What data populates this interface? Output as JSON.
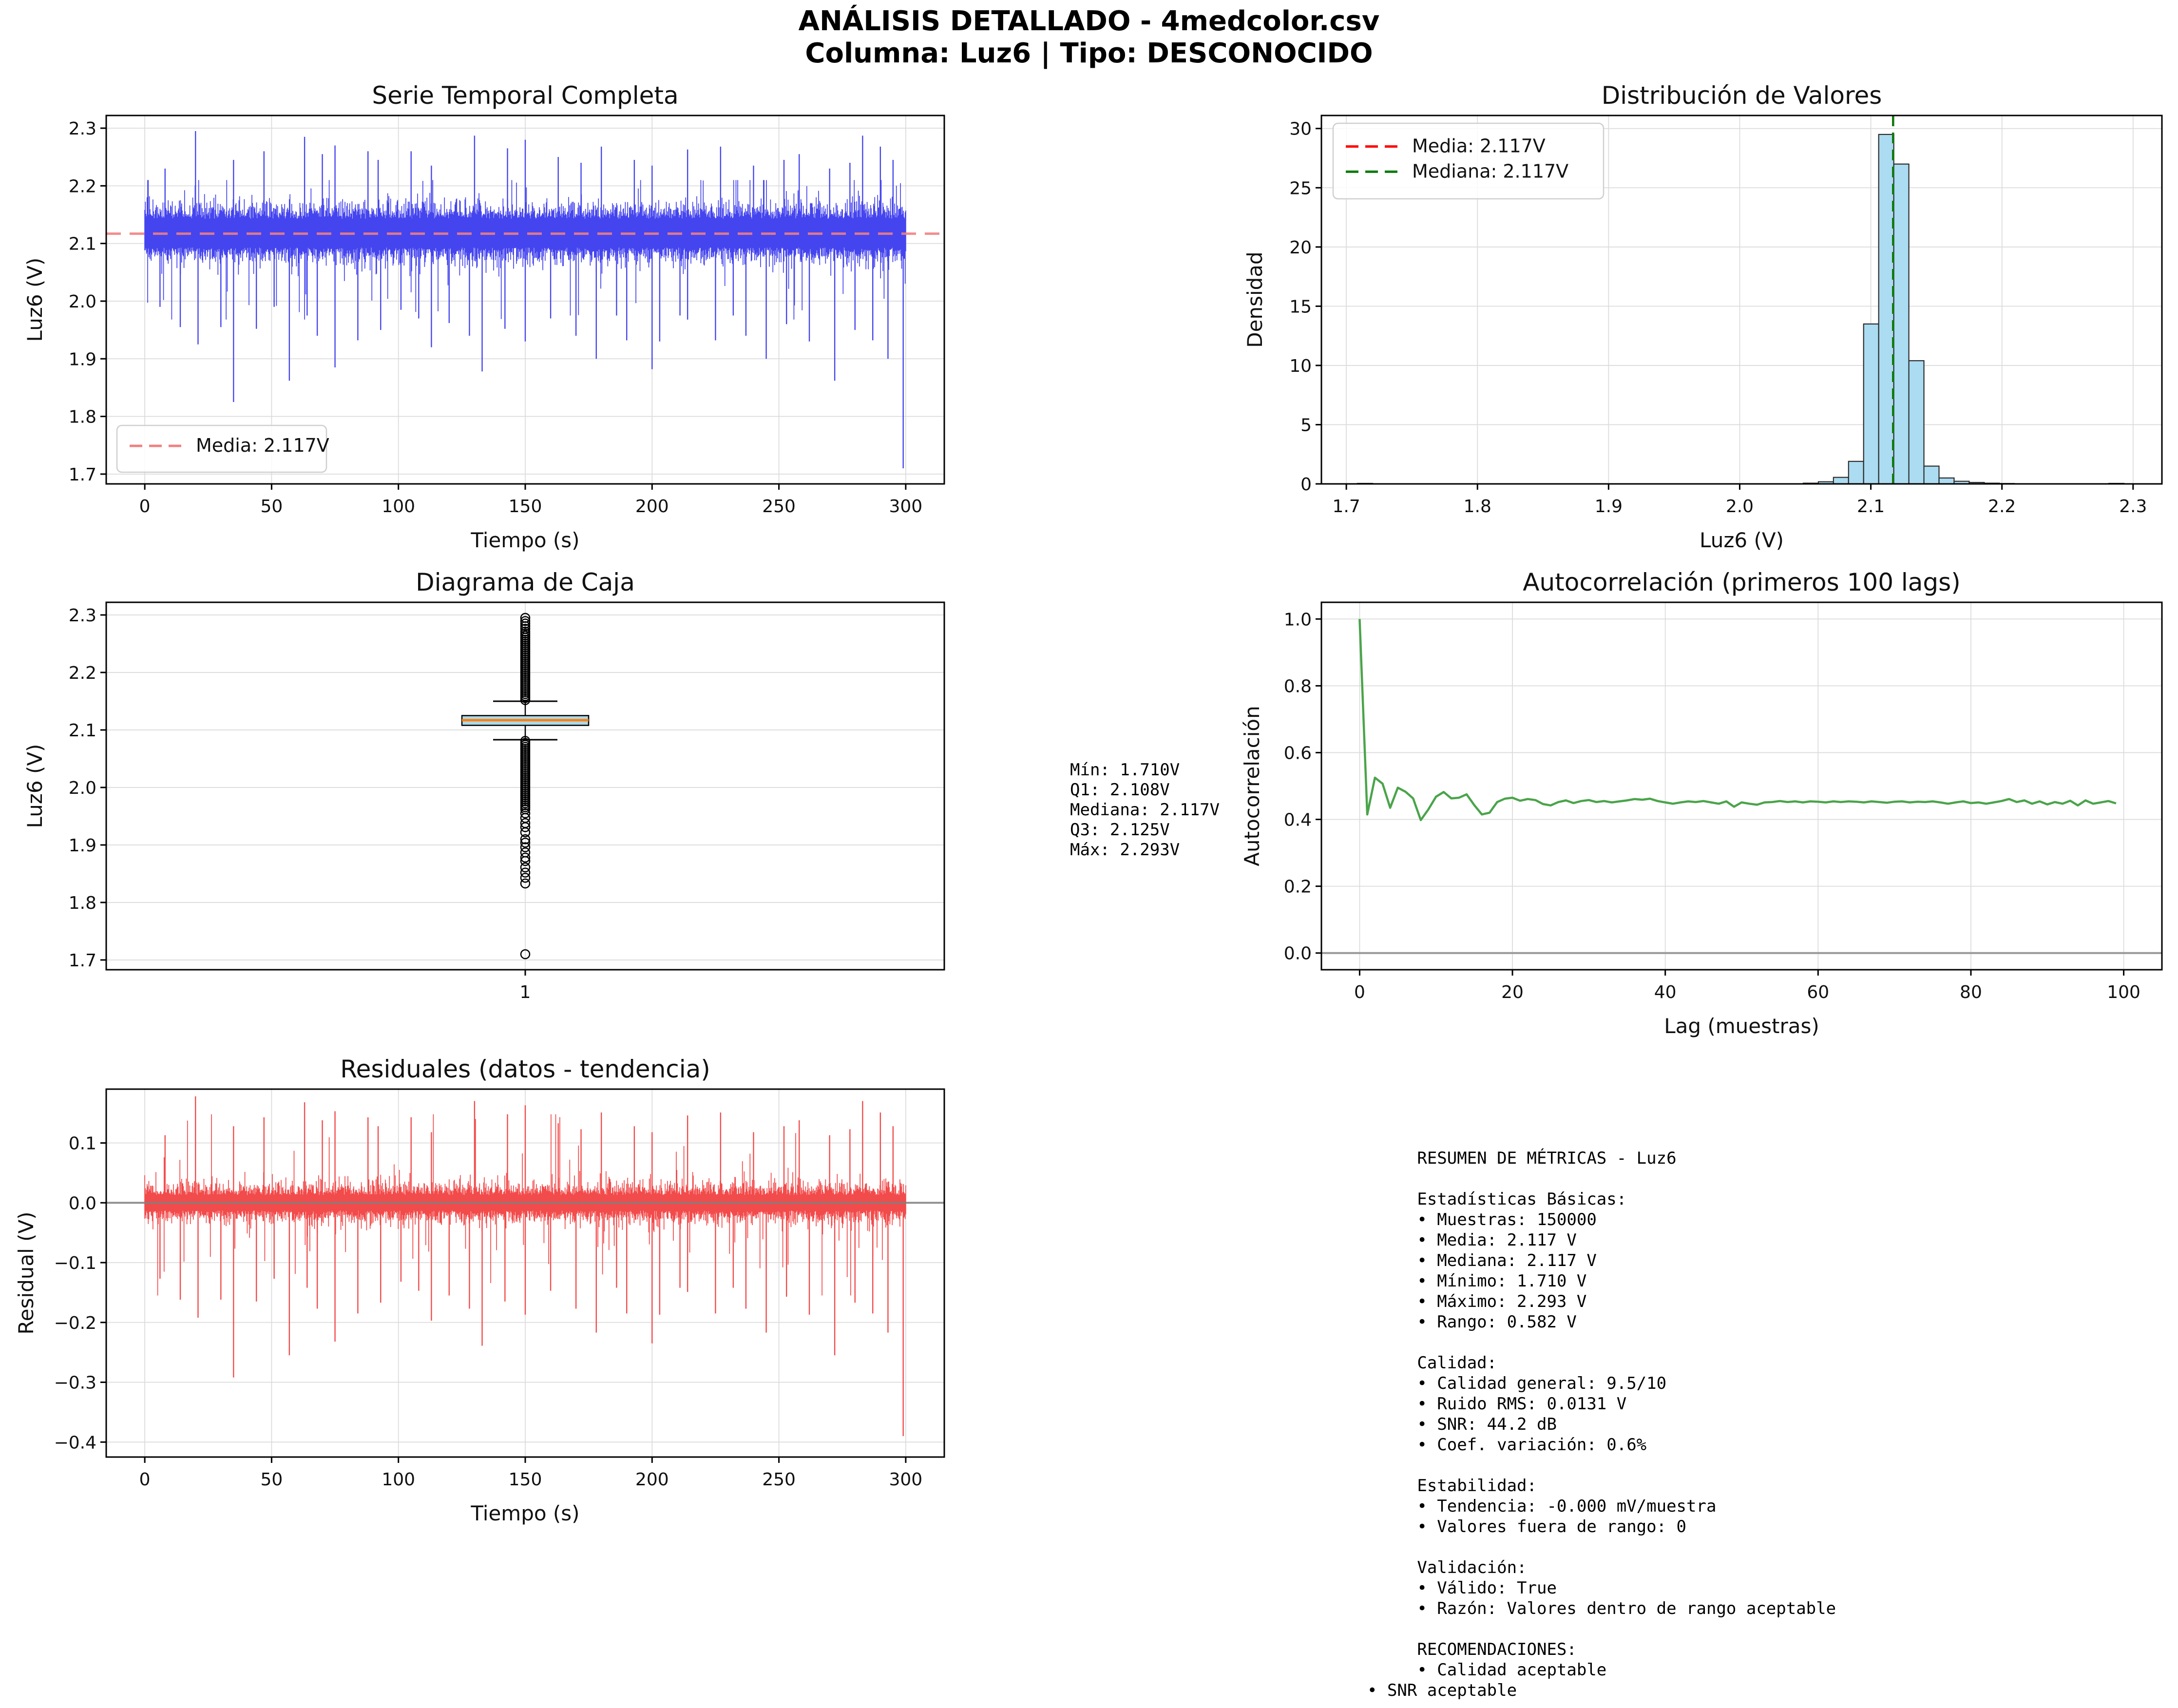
{
  "figure": {
    "suptitle_line1": "ANÁLISIS DETALLADO - 4medcolor.csv",
    "suptitle_line2": "Columna: Luz6 | Tipo: DESCONOCIDO",
    "background_hex": "#ffffff"
  },
  "chart_data": [
    {
      "id": "time_series",
      "type": "line",
      "title": "Serie Temporal Completa",
      "xlabel": "Tiempo (s)",
      "ylabel": "Luz6 (V)",
      "xlim": [
        -15.2,
        315.2
      ],
      "ylim": [
        1.683,
        2.322
      ],
      "xticks": [
        0,
        50,
        100,
        150,
        200,
        250,
        300
      ],
      "yticks": [
        1.7,
        1.8,
        1.9,
        2.0,
        2.1,
        2.2,
        2.3
      ],
      "grid": true,
      "line_color_hex": "#4545ef",
      "mean_line": {
        "value": 2.117,
        "color_hex": "#f08080",
        "style": "dashed",
        "legend_label": "Media: 2.117V",
        "legend_position": "lower left"
      },
      "series_summary": {
        "n_samples": 150000,
        "t_start": 0,
        "t_end": 300,
        "center": 2.117,
        "dense_band_low": 2.085,
        "dense_band_high": 2.18,
        "spikes_up": [
          [
            8,
            2.23
          ],
          [
            20,
            2.295
          ],
          [
            35,
            2.245
          ],
          [
            47,
            2.26
          ],
          [
            63,
            2.285
          ],
          [
            70,
            2.255
          ],
          [
            75,
            2.27
          ],
          [
            88,
            2.26
          ],
          [
            92,
            2.245
          ],
          [
            105,
            2.26
          ],
          [
            113,
            2.235
          ],
          [
            130,
            2.287
          ],
          [
            143,
            2.265
          ],
          [
            150,
            2.28
          ],
          [
            163,
            2.25
          ],
          [
            172,
            2.24
          ],
          [
            180,
            2.268
          ],
          [
            193,
            2.245
          ],
          [
            200,
            2.235
          ],
          [
            214,
            2.263
          ],
          [
            227,
            2.268
          ],
          [
            240,
            2.235
          ],
          [
            252,
            2.245
          ],
          [
            258,
            2.255
          ],
          [
            270,
            2.23
          ],
          [
            278,
            2.24
          ],
          [
            283,
            2.287
          ],
          [
            290,
            2.268
          ],
          [
            295,
            2.245
          ]
        ],
        "spikes_down": [
          [
            6,
            1.99
          ],
          [
            14,
            1.955
          ],
          [
            21,
            1.925
          ],
          [
            30,
            1.955
          ],
          [
            35,
            1.825
          ],
          [
            44,
            1.952
          ],
          [
            51,
            1.99
          ],
          [
            57,
            1.862
          ],
          [
            64,
            1.975
          ],
          [
            68,
            1.94
          ],
          [
            75,
            1.885
          ],
          [
            84,
            1.932
          ],
          [
            93,
            1.95
          ],
          [
            101,
            1.985
          ],
          [
            108,
            1.97
          ],
          [
            113,
            1.92
          ],
          [
            120,
            1.962
          ],
          [
            128,
            1.94
          ],
          [
            133,
            1.878
          ],
          [
            142,
            1.952
          ],
          [
            150,
            1.93
          ],
          [
            160,
            1.97
          ],
          [
            170,
            1.94
          ],
          [
            178,
            1.9
          ],
          [
            186,
            1.975
          ],
          [
            190,
            1.932
          ],
          [
            200,
            1.882
          ],
          [
            203,
            1.93
          ],
          [
            211,
            1.975
          ],
          [
            214,
            1.968
          ],
          [
            225,
            1.932
          ],
          [
            232,
            1.975
          ],
          [
            237,
            1.94
          ],
          [
            245,
            1.9
          ],
          [
            253,
            1.96
          ],
          [
            262,
            1.93
          ],
          [
            272,
            1.862
          ],
          [
            280,
            1.95
          ],
          [
            287,
            1.932
          ],
          [
            293,
            1.9
          ],
          [
            299,
            1.71
          ]
        ]
      }
    },
    {
      "id": "histogram",
      "type": "bar",
      "title": "Distribución de Valores",
      "xlabel": "Luz6 (V)",
      "ylabel": "Densidad",
      "xlim": [
        1.681,
        2.322
      ],
      "ylim": [
        0,
        31.1
      ],
      "xticks": [
        1.7,
        1.8,
        1.9,
        2.0,
        2.1,
        2.2,
        2.3
      ],
      "yticks": [
        0,
        5,
        10,
        15,
        20,
        25,
        30
      ],
      "grid": true,
      "bar_fill_hex": "#abdcf1",
      "bar_edge_hex": "#2d2d2d",
      "bin_width": 0.0115,
      "bin_lefts": [
        1.7085,
        2.0485,
        2.06,
        2.0715,
        2.083,
        2.0945,
        2.106,
        2.1175,
        2.129,
        2.1405,
        2.152,
        2.1635,
        2.175,
        2.1865,
        2.198,
        2.2815
      ],
      "densities": [
        0.04,
        0.06,
        0.18,
        0.55,
        1.9,
        13.5,
        29.5,
        27.0,
        10.4,
        1.5,
        0.5,
        0.22,
        0.12,
        0.06,
        0.03,
        0.04
      ],
      "mean_line": {
        "value": 2.117,
        "color_hex": "#ff0000",
        "style": "dashed",
        "legend_label": "Media: 2.117V"
      },
      "median_line": {
        "value": 2.117,
        "color_hex": "#0e7c0e",
        "style": "dashed",
        "legend_label": "Mediana: 2.117V"
      },
      "legend_position": "upper left"
    },
    {
      "id": "boxplot",
      "type": "boxplot",
      "title": "Diagrama de Caja",
      "xlabel": "",
      "ylabel": "Luz6 (V)",
      "xlim": [
        0,
        2
      ],
      "ylim": [
        1.683,
        2.322
      ],
      "xticks": [
        1
      ],
      "yticks": [
        1.7,
        1.8,
        1.9,
        2.0,
        2.1,
        2.2,
        2.3
      ],
      "xtick_label": "1",
      "grid": true,
      "box_fill_hex": "#add8e6",
      "box_edge_hex": "#000000",
      "median_color_hex": "#ff7f0e",
      "stats": {
        "min": 1.71,
        "q1": 2.108,
        "median": 2.117,
        "q3": 2.125,
        "max": 2.293,
        "whisker_low": 2.083,
        "whisker_high": 2.15
      },
      "outliers": {
        "dense_above": {
          "from": 2.152,
          "to": 2.272,
          "step": 0.0035
        },
        "distinct_above": [
          2.276,
          2.2805,
          2.285,
          2.2895,
          2.295
        ],
        "dense_below": {
          "from": 2.081,
          "to": 1.962,
          "step": 0.0035
        },
        "distinct_below": [
          1.955,
          1.947,
          1.938,
          1.931,
          1.922,
          1.91,
          1.904,
          1.896,
          1.887,
          1.878,
          1.872,
          1.861,
          1.852,
          1.843,
          1.833
        ],
        "isolated": [
          1.71
        ]
      }
    },
    {
      "id": "autocorrelation",
      "type": "line",
      "title": "Autocorrelación (primeros 100 lags)",
      "xlabel": "Lag (muestras)",
      "ylabel": "Autocorrelación",
      "xlim": [
        -5,
        105
      ],
      "ylim": [
        -0.05,
        1.05
      ],
      "xticks": [
        0,
        20,
        40,
        60,
        80,
        100
      ],
      "yticks": [
        0.0,
        0.2,
        0.4,
        0.6,
        0.8,
        1.0
      ],
      "grid": true,
      "line_color_hex": "#4aa44a",
      "zero_line_color_hex": "#999999",
      "values": [
        1.0,
        0.415,
        0.525,
        0.507,
        0.435,
        0.495,
        0.483,
        0.463,
        0.398,
        0.43,
        0.468,
        0.482,
        0.463,
        0.465,
        0.475,
        0.443,
        0.415,
        0.42,
        0.452,
        0.462,
        0.465,
        0.456,
        0.461,
        0.458,
        0.446,
        0.442,
        0.452,
        0.457,
        0.449,
        0.455,
        0.458,
        0.452,
        0.455,
        0.451,
        0.454,
        0.457,
        0.461,
        0.459,
        0.462,
        0.455,
        0.451,
        0.447,
        0.451,
        0.454,
        0.452,
        0.455,
        0.451,
        0.447,
        0.454,
        0.438,
        0.451,
        0.447,
        0.444,
        0.451,
        0.452,
        0.455,
        0.452,
        0.454,
        0.451,
        0.454,
        0.453,
        0.451,
        0.454,
        0.452,
        0.454,
        0.453,
        0.451,
        0.454,
        0.452,
        0.45,
        0.453,
        0.454,
        0.451,
        0.453,
        0.452,
        0.454,
        0.451,
        0.447,
        0.451,
        0.454,
        0.449,
        0.451,
        0.447,
        0.451,
        0.455,
        0.461,
        0.452,
        0.457,
        0.447,
        0.454,
        0.445,
        0.452,
        0.447,
        0.456,
        0.442,
        0.457,
        0.447,
        0.451,
        0.455,
        0.448
      ]
    },
    {
      "id": "residuals",
      "type": "line",
      "title": "Residuales (datos - tendencia)",
      "xlabel": "Tiempo (s)",
      "ylabel": "Residual (V)",
      "xlim": [
        -15.2,
        315.2
      ],
      "ylim": [
        -0.425,
        0.19
      ],
      "xticks": [
        0,
        50,
        100,
        150,
        200,
        250,
        300
      ],
      "yticks": [
        0.1,
        0.0,
        -0.1,
        -0.2,
        -0.3,
        -0.4
      ],
      "grid": true,
      "line_color_hex": "#f24b4b",
      "zero_line_color_hex": "#808080",
      "series_summary": {
        "center": 0.0,
        "dense_band_low": -0.045,
        "dense_band_high": 0.05,
        "spikes_up": [
          [
            8,
            0.113
          ],
          [
            20,
            0.178
          ],
          [
            35,
            0.128
          ],
          [
            47,
            0.143
          ],
          [
            63,
            0.168
          ],
          [
            70,
            0.138
          ],
          [
            75,
            0.153
          ],
          [
            88,
            0.143
          ],
          [
            92,
            0.128
          ],
          [
            105,
            0.143
          ],
          [
            113,
            0.118
          ],
          [
            130,
            0.17
          ],
          [
            143,
            0.148
          ],
          [
            150,
            0.163
          ],
          [
            163,
            0.133
          ],
          [
            172,
            0.123
          ],
          [
            180,
            0.151
          ],
          [
            193,
            0.128
          ],
          [
            200,
            0.118
          ],
          [
            214,
            0.146
          ],
          [
            227,
            0.151
          ],
          [
            240,
            0.118
          ],
          [
            252,
            0.128
          ],
          [
            258,
            0.138
          ],
          [
            270,
            0.113
          ],
          [
            278,
            0.123
          ],
          [
            283,
            0.17
          ],
          [
            290,
            0.151
          ],
          [
            295,
            0.128
          ]
        ],
        "spikes_down": [
          [
            6,
            -0.127
          ],
          [
            14,
            -0.162
          ],
          [
            21,
            -0.192
          ],
          [
            30,
            -0.162
          ],
          [
            35,
            -0.292
          ],
          [
            44,
            -0.165
          ],
          [
            51,
            -0.127
          ],
          [
            57,
            -0.255
          ],
          [
            64,
            -0.142
          ],
          [
            68,
            -0.177
          ],
          [
            75,
            -0.232
          ],
          [
            84,
            -0.185
          ],
          [
            93,
            -0.167
          ],
          [
            101,
            -0.132
          ],
          [
            108,
            -0.147
          ],
          [
            113,
            -0.197
          ],
          [
            120,
            -0.155
          ],
          [
            128,
            -0.177
          ],
          [
            133,
            -0.239
          ],
          [
            142,
            -0.165
          ],
          [
            150,
            -0.187
          ],
          [
            160,
            -0.147
          ],
          [
            170,
            -0.177
          ],
          [
            178,
            -0.217
          ],
          [
            186,
            -0.142
          ],
          [
            190,
            -0.185
          ],
          [
            200,
            -0.235
          ],
          [
            203,
            -0.187
          ],
          [
            211,
            -0.142
          ],
          [
            214,
            -0.149
          ],
          [
            225,
            -0.185
          ],
          [
            232,
            -0.142
          ],
          [
            237,
            -0.177
          ],
          [
            245,
            -0.217
          ],
          [
            253,
            -0.157
          ],
          [
            262,
            -0.187
          ],
          [
            272,
            -0.255
          ],
          [
            280,
            -0.167
          ],
          [
            287,
            -0.185
          ],
          [
            293,
            -0.217
          ],
          [
            299,
            -0.39
          ]
        ]
      }
    }
  ],
  "stats_annotation": {
    "lines": [
      "Mín: 1.710V",
      "Q1: 2.108V",
      "Mediana: 2.117V",
      "Q3: 2.125V",
      "Máx: 2.293V"
    ]
  },
  "metrics_panel": {
    "lines": [
      "     RESUMEN DE MÉTRICAS - Luz6",
      "",
      "     Estadísticas Básicas:",
      "     • Muestras: 150000",
      "     • Media: 2.117 V",
      "     • Mediana: 2.117 V",
      "     • Mínimo: 1.710 V",
      "     • Máximo: 2.293 V",
      "     • Rango: 0.582 V",
      "",
      "     Calidad:",
      "     • Calidad general: 9.5/10",
      "     • Ruido RMS: 0.0131 V",
      "     • SNR: 44.2 dB",
      "     • Coef. variación: 0.6%",
      "",
      "     Estabilidad:",
      "     • Tendencia: -0.000 mV/muestra",
      "     • Valores fuera de rango: 0",
      "",
      "     Validación:",
      "     • Válido: True",
      "     • Razón: Valores dentro de rango aceptable",
      "",
      "     RECOMENDACIONES:",
      "     • Calidad aceptable",
      "• SNR aceptable"
    ]
  }
}
